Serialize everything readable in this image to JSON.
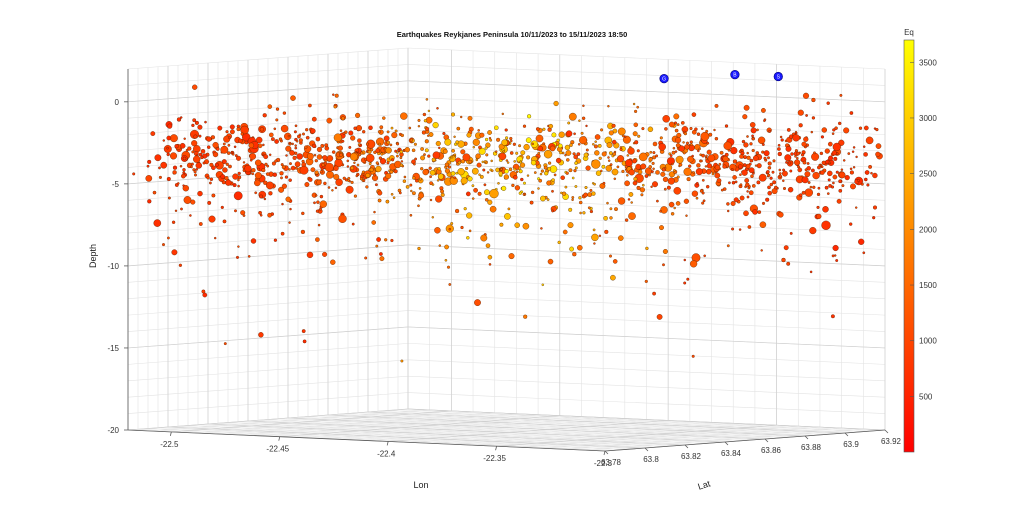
{
  "chart_data": {
    "type": "scatter",
    "title": "Earthquakes Reykjanes Peninsula 10/11/2023 to 15/11/2023 18:50",
    "xlabel": "Lon",
    "ylabel": "Lat",
    "zlabel": "Depth",
    "x_ticks": [
      "-22.5",
      "-22.45",
      "-22.4",
      "-22.35",
      "-22.3"
    ],
    "y_ticks": [
      "63.78",
      "63.8",
      "63.82",
      "63.84",
      "63.86",
      "63.88",
      "63.9",
      "63.92"
    ],
    "z_ticks": [
      "0",
      "-5",
      "-10",
      "-15",
      "-20"
    ],
    "xlim": [
      -22.52,
      -22.3
    ],
    "ylim": [
      63.78,
      63.92
    ],
    "zlim": [
      -20,
      2
    ],
    "grid": true,
    "colorbar": {
      "label": "Eq",
      "ticks": [
        "500",
        "1000",
        "1500",
        "2000",
        "2500",
        "3000",
        "3500"
      ],
      "range": [
        1,
        3700
      ],
      "colors": [
        "#ff0000",
        "#ffff00"
      ]
    },
    "markers": [
      {
        "label": "G",
        "lon": -22.365,
        "lat": 63.88,
        "depth": 1.4
      },
      {
        "label": "B",
        "lon": -22.36,
        "lat": 63.91,
        "depth": 1.4
      },
      {
        "label": "S",
        "lon": -22.34,
        "lat": 63.91,
        "depth": 1.4
      }
    ],
    "marker_color": "#1a1aff",
    "point_count": 3700,
    "series_description": "Earthquake hypocentres colored by earthquake index (Eq), concentrated between 0 and -7 km depth along the peninsula, scattered deeper events down to about -16 km."
  }
}
